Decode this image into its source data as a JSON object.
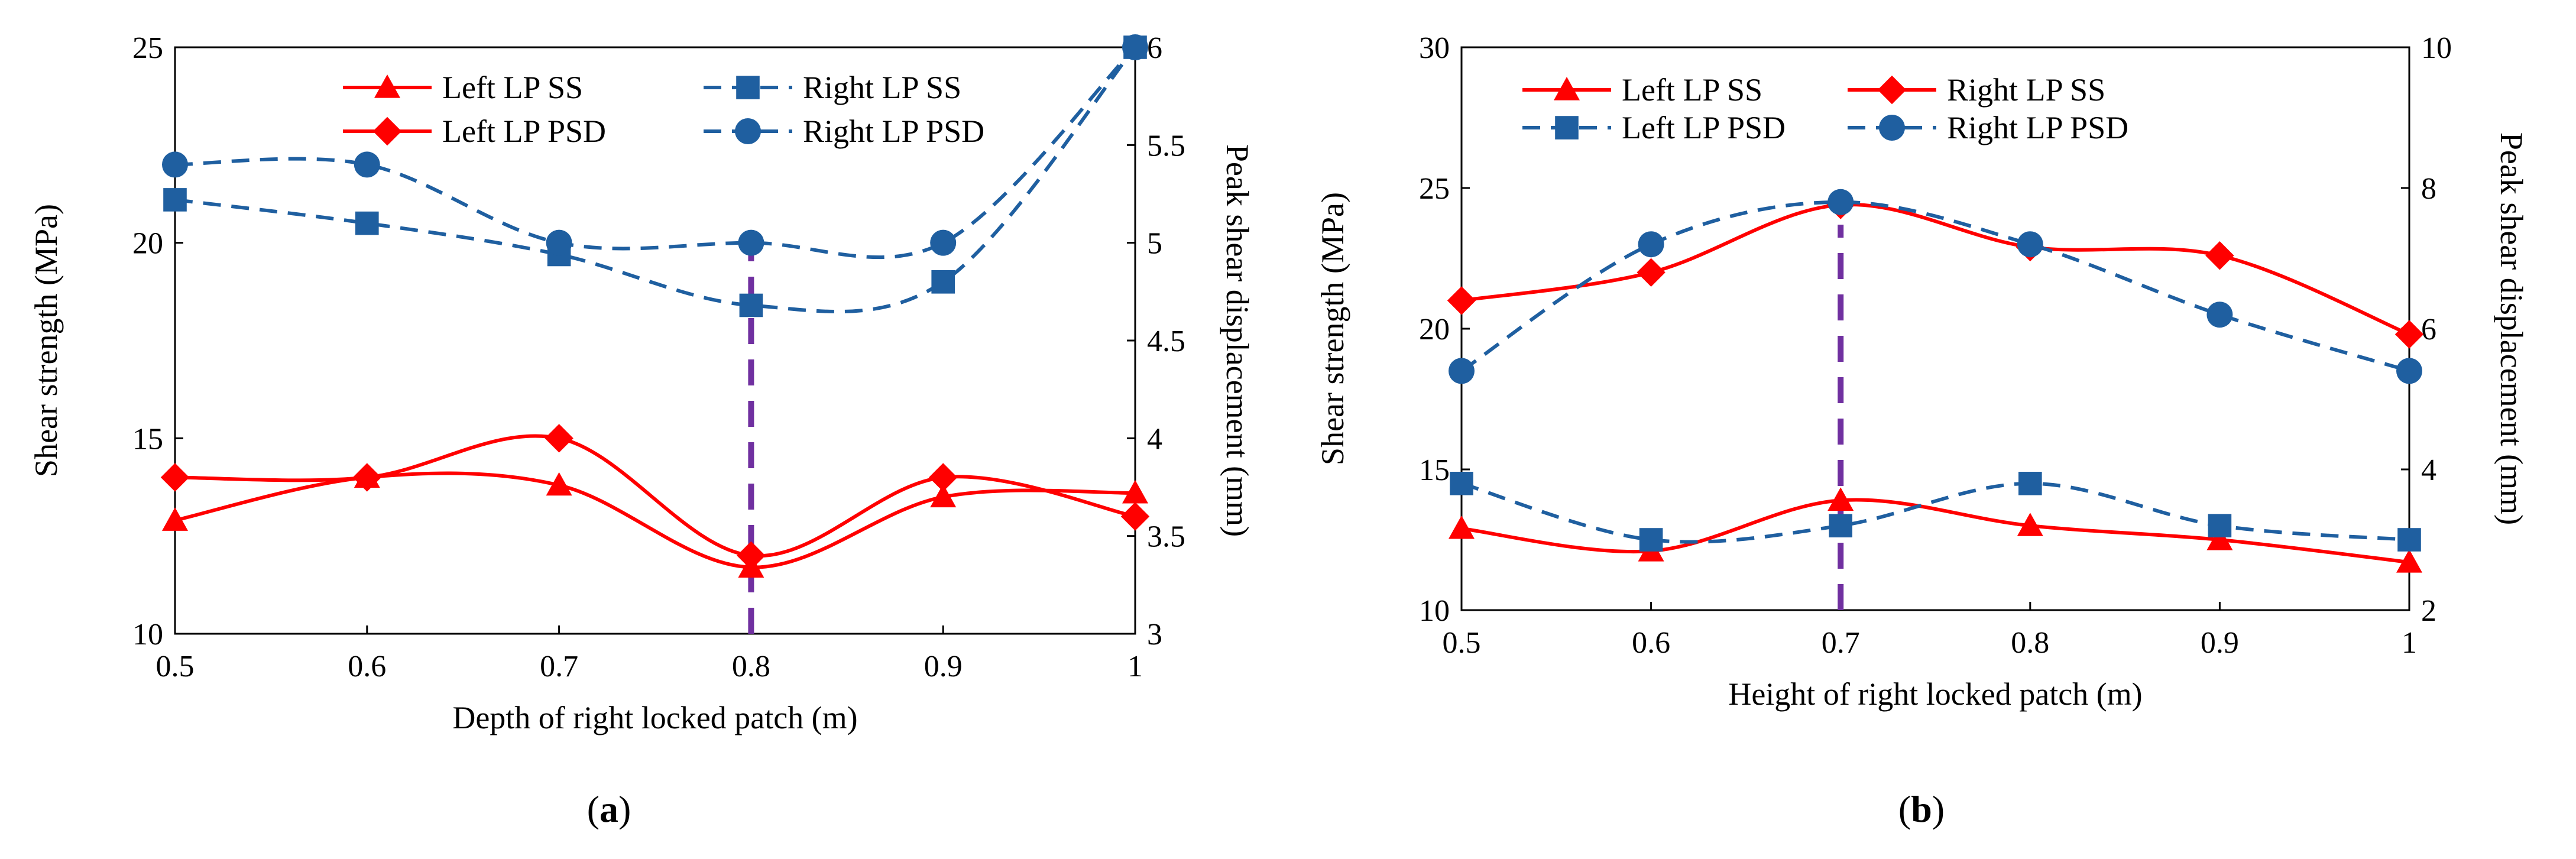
{
  "chart_data": [
    {
      "panel_label_open": "(",
      "panel_label": "a",
      "panel_label_close": ")",
      "type": "line",
      "xlabel": "Depth of right locked patch (m)",
      "ylabel": "Shear strength (MPa)",
      "y2label": "Peak shear displacement (mm)",
      "x_ticks": [
        "0.5",
        "0.6",
        "0.7",
        "0.8",
        "0.9",
        "1"
      ],
      "y_ticks": [
        "10",
        "15",
        "20",
        "25"
      ],
      "y2_ticks": [
        "3",
        "3.5",
        "4",
        "4.5",
        "5",
        "5.5",
        "6"
      ],
      "xlim": [
        0.5,
        1.0
      ],
      "ylim": [
        10,
        25
      ],
      "y2lim": [
        3,
        6
      ],
      "marker_line_x": 0.8,
      "legend_placement": "top",
      "x": [
        0.5,
        0.6,
        0.7,
        0.8,
        0.9,
        1.0
      ],
      "series": [
        {
          "name": "Left LP SS",
          "axis": "left",
          "color": "#ff0000",
          "dash": "solid",
          "marker": "triangle",
          "values": [
            12.9,
            14.0,
            13.8,
            11.7,
            13.5,
            13.6
          ]
        },
        {
          "name": "Right LP SS",
          "axis": "left",
          "color": "#1f5fa0",
          "dash": "dashed",
          "marker": "square",
          "values": [
            21.1,
            20.5,
            19.7,
            18.4,
            19.0,
            25.0
          ]
        },
        {
          "name": "Left LP PSD",
          "axis": "right",
          "color": "#ff0000",
          "dash": "solid",
          "marker": "diamond",
          "values": [
            3.8,
            3.8,
            4.0,
            3.4,
            3.8,
            3.6
          ]
        },
        {
          "name": "Right LP PSD",
          "axis": "right",
          "color": "#1f5fa0",
          "dash": "dashed",
          "marker": "circle",
          "values": [
            5.4,
            5.4,
            5.0,
            5.0,
            5.0,
            6.0
          ]
        }
      ]
    },
    {
      "panel_label_open": "(",
      "panel_label": "b",
      "panel_label_close": ")",
      "type": "line",
      "xlabel": "Height of right locked patch  (m)",
      "ylabel": "Shear strength (MPa)",
      "y2label": "Peak shear displacement (mm)",
      "x_ticks": [
        "0.5",
        "0.6",
        "0.7",
        "0.8",
        "0.9",
        "1"
      ],
      "y_ticks": [
        "10",
        "15",
        "20",
        "25",
        "30"
      ],
      "y2_ticks": [
        "2",
        "4",
        "6",
        "8",
        "10"
      ],
      "xlim": [
        0.5,
        1.0
      ],
      "ylim": [
        10,
        30
      ],
      "y2lim": [
        2,
        10
      ],
      "marker_line_x": 0.7,
      "legend_placement": "top",
      "x": [
        0.5,
        0.6,
        0.7,
        0.8,
        0.9,
        1.0
      ],
      "series": [
        {
          "name": "Left LP SS",
          "axis": "left",
          "color": "#ff0000",
          "dash": "solid",
          "marker": "triangle",
          "values": [
            12.9,
            12.1,
            13.9,
            13.0,
            12.5,
            11.7
          ]
        },
        {
          "name": "Right LP SS",
          "axis": "left",
          "color": "#ff0000",
          "dash": "solid",
          "marker": "diamond",
          "values": [
            21.0,
            22.0,
            24.4,
            22.9,
            22.6,
            19.8
          ]
        },
        {
          "name": "Left LP PSD",
          "axis": "right",
          "color": "#1f5fa0",
          "dash": "dashed",
          "marker": "square",
          "values": [
            3.8,
            3.0,
            3.2,
            3.8,
            3.2,
            3.0
          ]
        },
        {
          "name": "Right LP PSD",
          "axis": "right",
          "color": "#1f5fa0",
          "dash": "dashed",
          "marker": "circle",
          "values": [
            5.4,
            7.2,
            7.8,
            7.2,
            6.2,
            5.4
          ]
        }
      ]
    }
  ]
}
